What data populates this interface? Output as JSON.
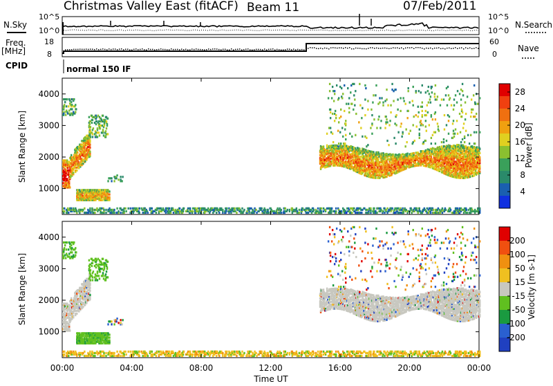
{
  "header": {
    "station": "Christmas Valley East (fitACF)",
    "beam": "Beam 11",
    "date": "07/Feb/2011"
  },
  "top_panels": {
    "nsky_label": "N.Sky",
    "nsearch_label": "N.Search",
    "freq_label": "Freq.",
    "freq_unit": "[MHz]",
    "nave_label": "Nave",
    "cpid_label": "CPID",
    "cpid_value": "normal 150 IF",
    "noise_ticks": [
      "10^5",
      "10^0"
    ],
    "freq_ticks": [
      "18",
      "8"
    ],
    "nave_ticks": [
      "60",
      "0"
    ]
  },
  "chart_data": [
    {
      "type": "heatmap",
      "name": "power",
      "ylabel": "Slant Range [km]",
      "xlabel": "Time UT",
      "xlim": [
        "00:00",
        "24:00"
      ],
      "ylim": [
        180,
        4500
      ],
      "xticks": [
        "00:00",
        "04:00",
        "08:00",
        "12:00",
        "16:00",
        "20:00",
        "00:00"
      ],
      "yticks": [
        1000,
        2000,
        3000,
        4000
      ],
      "colorbar": {
        "label": "Power [dB]",
        "ticks": [
          4,
          8,
          12,
          16,
          20,
          24,
          28
        ],
        "range": [
          0,
          30
        ],
        "colors": [
          "#1030e0",
          "#1a5fb0",
          "#2a8a6a",
          "#3aa05a",
          "#8ac030",
          "#e0d020",
          "#f0a010",
          "#f07010",
          "#f04010",
          "#e00000"
        ]
      }
    },
    {
      "type": "heatmap",
      "name": "velocity",
      "ylabel": "Slant Range [km]",
      "xlabel": "Time UT",
      "xlim": [
        "00:00",
        "24:00"
      ],
      "ylim": [
        180,
        4500
      ],
      "xticks": [
        "00:00",
        "04:00",
        "08:00",
        "12:00",
        "16:00",
        "20:00",
        "00:00"
      ],
      "yticks": [
        1000,
        2000,
        3000,
        4000
      ],
      "colorbar": {
        "label": "Velocity [m s-1]",
        "ticks": [
          "200",
          "100",
          "50",
          "15",
          "-15",
          "-50",
          "-100",
          "-200"
        ],
        "colors": [
          "#2040c0",
          "#2a60d0",
          "#1a9a40",
          "#60c020",
          "#c8c8c0",
          "#f0c020",
          "#f09010",
          "#f05010",
          "#e00000"
        ]
      }
    }
  ],
  "colors": {
    "ground_scatter": "#c8c8c0",
    "axis": "#000000"
  }
}
